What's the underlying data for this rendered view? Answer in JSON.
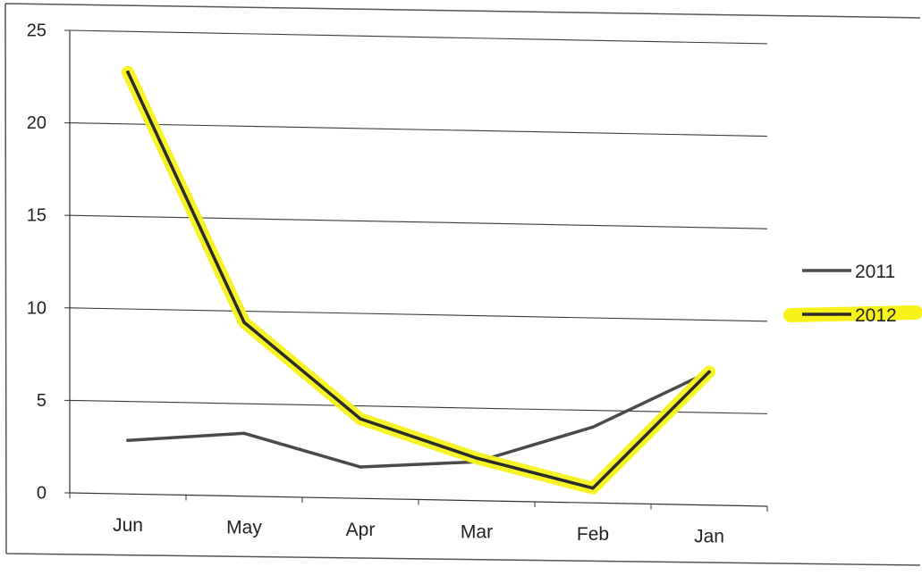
{
  "chart_data": {
    "type": "line",
    "categories": [
      "Jun",
      "May",
      "Apr",
      "Mar",
      "Feb",
      "Jan"
    ],
    "series": [
      {
        "name": "2011",
        "values": [
          2.9,
          3.4,
          1.7,
          2.1,
          4.1,
          7.2
        ],
        "color": "#4a4a4a",
        "highlight": false
      },
      {
        "name": "2012",
        "values": [
          22.8,
          9.4,
          4.3,
          2.3,
          0.8,
          7.2
        ],
        "color": "#2b2b2b",
        "highlight": true,
        "highlight_color": "#f7f21a"
      }
    ],
    "ylim": [
      0,
      25
    ],
    "yticks": [
      "0",
      "5",
      "10",
      "15",
      "20",
      "25"
    ],
    "grid": true,
    "legend": "right",
    "title": "",
    "xlabel": "",
    "ylabel": ""
  }
}
